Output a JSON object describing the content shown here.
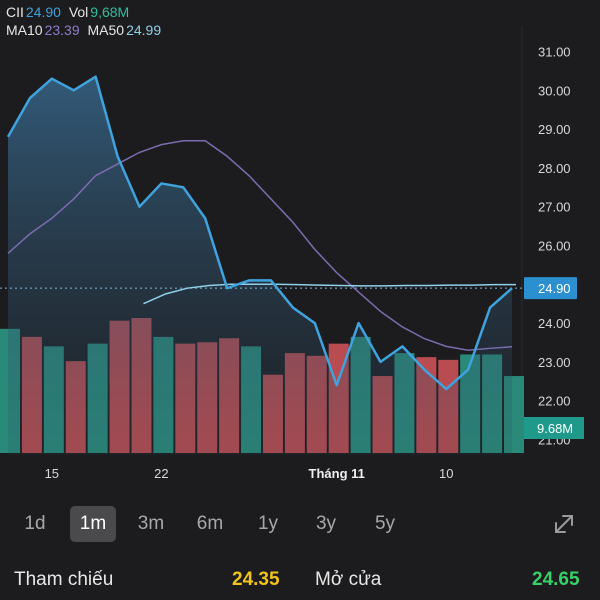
{
  "legend": {
    "symbol": "CII",
    "price": "24.90",
    "vol_label": "Vol",
    "vol_value": "9,68M",
    "ma10_label": "MA10",
    "ma10_value": "23.39",
    "ma50_label": "MA50",
    "ma50_value": "24.99"
  },
  "colors": {
    "background": "#1c1c1e",
    "price_line": "#3fa3de",
    "ma10": "#7d6bb0",
    "ma50": "#8fd0ea",
    "vol_up": "#2a8a7a",
    "vol_down": "#b94c50",
    "last_price_bg": "#2c8fd0",
    "last_vol_bg": "#1f9a8a",
    "ref": "#f0c419",
    "open": "#38d167"
  },
  "chart_data": {
    "type": "line",
    "y_ticks": [
      "31.00",
      "30.00",
      "29.00",
      "28.00",
      "27.00",
      "26.00",
      "24.00",
      "23.00",
      "22.00",
      "21.00"
    ],
    "ylim": [
      20.6,
      31.4
    ],
    "x_labels": [
      {
        "label": "15",
        "index": 2
      },
      {
        "label": "22",
        "index": 7
      },
      {
        "label": "Tháng 11",
        "index": 15,
        "bold": true
      },
      {
        "label": "10",
        "index": 20
      }
    ],
    "price": [
      28.8,
      29.8,
      30.3,
      30.0,
      30.35,
      28.3,
      27.0,
      27.6,
      27.5,
      26.7,
      24.9,
      25.1,
      25.1,
      24.4,
      24.0,
      22.4,
      24.0,
      23.0,
      23.4,
      22.8,
      22.3,
      22.8,
      24.4,
      24.9
    ],
    "ma10": [
      25.8,
      26.3,
      26.7,
      27.2,
      27.8,
      28.1,
      28.4,
      28.6,
      28.7,
      28.7,
      28.3,
      27.8,
      27.2,
      26.6,
      25.9,
      25.3,
      24.8,
      24.3,
      23.9,
      23.6,
      23.4,
      23.3,
      23.35,
      23.39
    ],
    "ma50": [
      null,
      null,
      null,
      null,
      null,
      null,
      24.5,
      24.75,
      24.9,
      24.97,
      25.0,
      25.0,
      25.0,
      24.99,
      24.98,
      24.97,
      24.96,
      24.96,
      24.97,
      24.97,
      24.98,
      24.98,
      24.99,
      24.99
    ],
    "last_price_label": "24.90",
    "volume": {
      "values": [
        0.92,
        0.86,
        0.79,
        0.68,
        0.81,
        0.98,
        1.0,
        0.86,
        0.81,
        0.82,
        0.85,
        0.79,
        0.58,
        0.74,
        0.72,
        0.81,
        0.86,
        0.57,
        0.74,
        0.71,
        0.69,
        0.73,
        0.73,
        0.57
      ],
      "up": [
        true,
        false,
        true,
        false,
        true,
        false,
        false,
        true,
        false,
        false,
        false,
        true,
        false,
        false,
        false,
        false,
        true,
        false,
        true,
        false,
        false,
        true,
        true,
        true
      ],
      "last_label": "9.68M"
    }
  },
  "range_tabs": [
    {
      "label": "1d",
      "active": false
    },
    {
      "label": "1m",
      "active": true
    },
    {
      "label": "3m",
      "active": false
    },
    {
      "label": "6m",
      "active": false
    },
    {
      "label": "1y",
      "active": false
    },
    {
      "label": "3y",
      "active": false
    },
    {
      "label": "5y",
      "active": false
    }
  ],
  "stats": {
    "ref_label": "Tham chiếu",
    "ref_value": "24.35",
    "open_label": "Mở cửa",
    "open_value": "24.65"
  },
  "icons": {
    "expand": "expand-icon"
  }
}
